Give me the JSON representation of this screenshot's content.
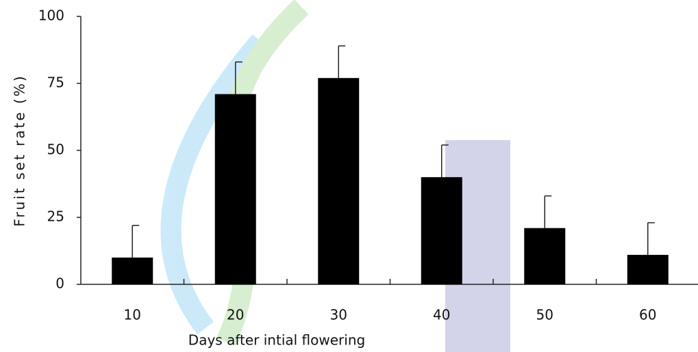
{
  "chart_data": {
    "type": "bar",
    "x_label": "Days after intial flowering",
    "y_label": "Fruit set rate (%)",
    "categories": [
      "10",
      "20",
      "30",
      "40",
      "50",
      "60"
    ],
    "values": [
      10,
      71,
      77,
      40,
      21,
      11
    ],
    "errors": [
      12,
      12,
      12,
      12,
      12,
      12
    ],
    "color": "#000000",
    "ylim": [
      0,
      100
    ],
    "yticks": [
      0,
      25,
      50,
      75,
      100
    ],
    "grid": false
  }
}
